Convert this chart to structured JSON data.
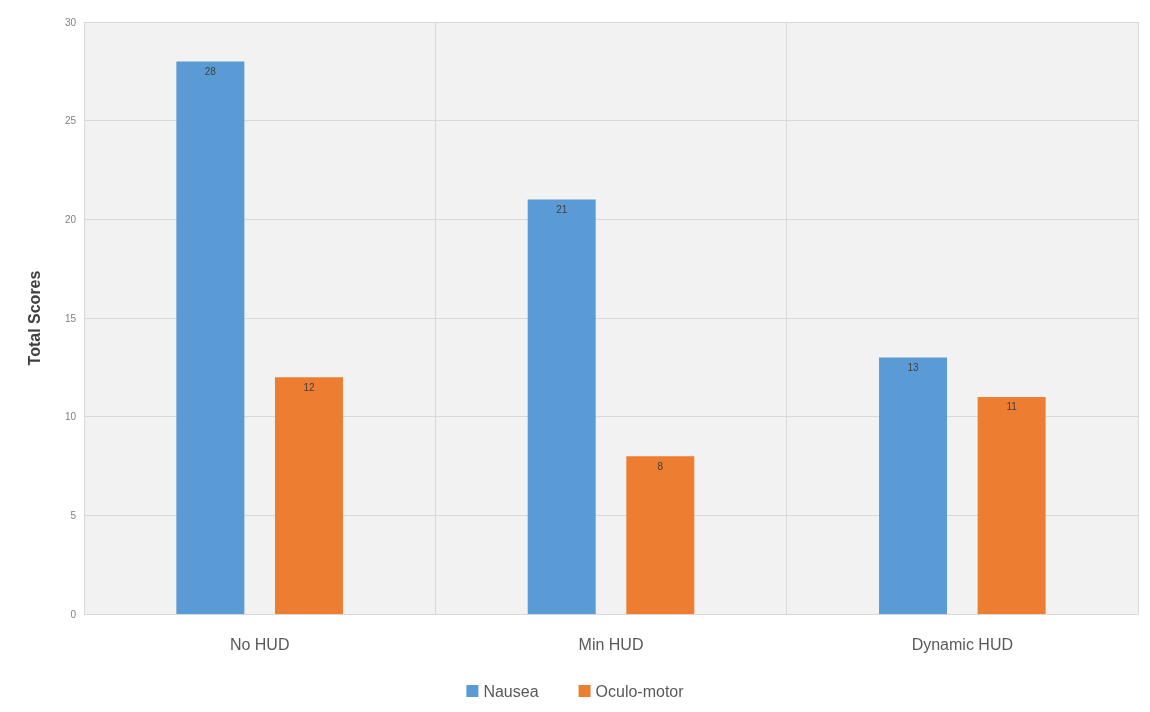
{
  "chart_data": {
    "type": "bar",
    "ylabel": "Total Scores",
    "categories": [
      "No HUD",
      "Min HUD",
      "Dynamic HUD"
    ],
    "series": [
      {
        "name": "Nausea",
        "color": "#5b9bd5",
        "values": [
          28,
          21,
          13
        ]
      },
      {
        "name": "Oculo-motor",
        "color": "#ed7d31",
        "values": [
          12,
          8,
          11
        ]
      }
    ],
    "ylim": [
      0,
      30
    ],
    "yticks": [
      0,
      5,
      10,
      15,
      20,
      25,
      30
    ],
    "grid": true,
    "legend": "bottom",
    "data_labels": true
  }
}
